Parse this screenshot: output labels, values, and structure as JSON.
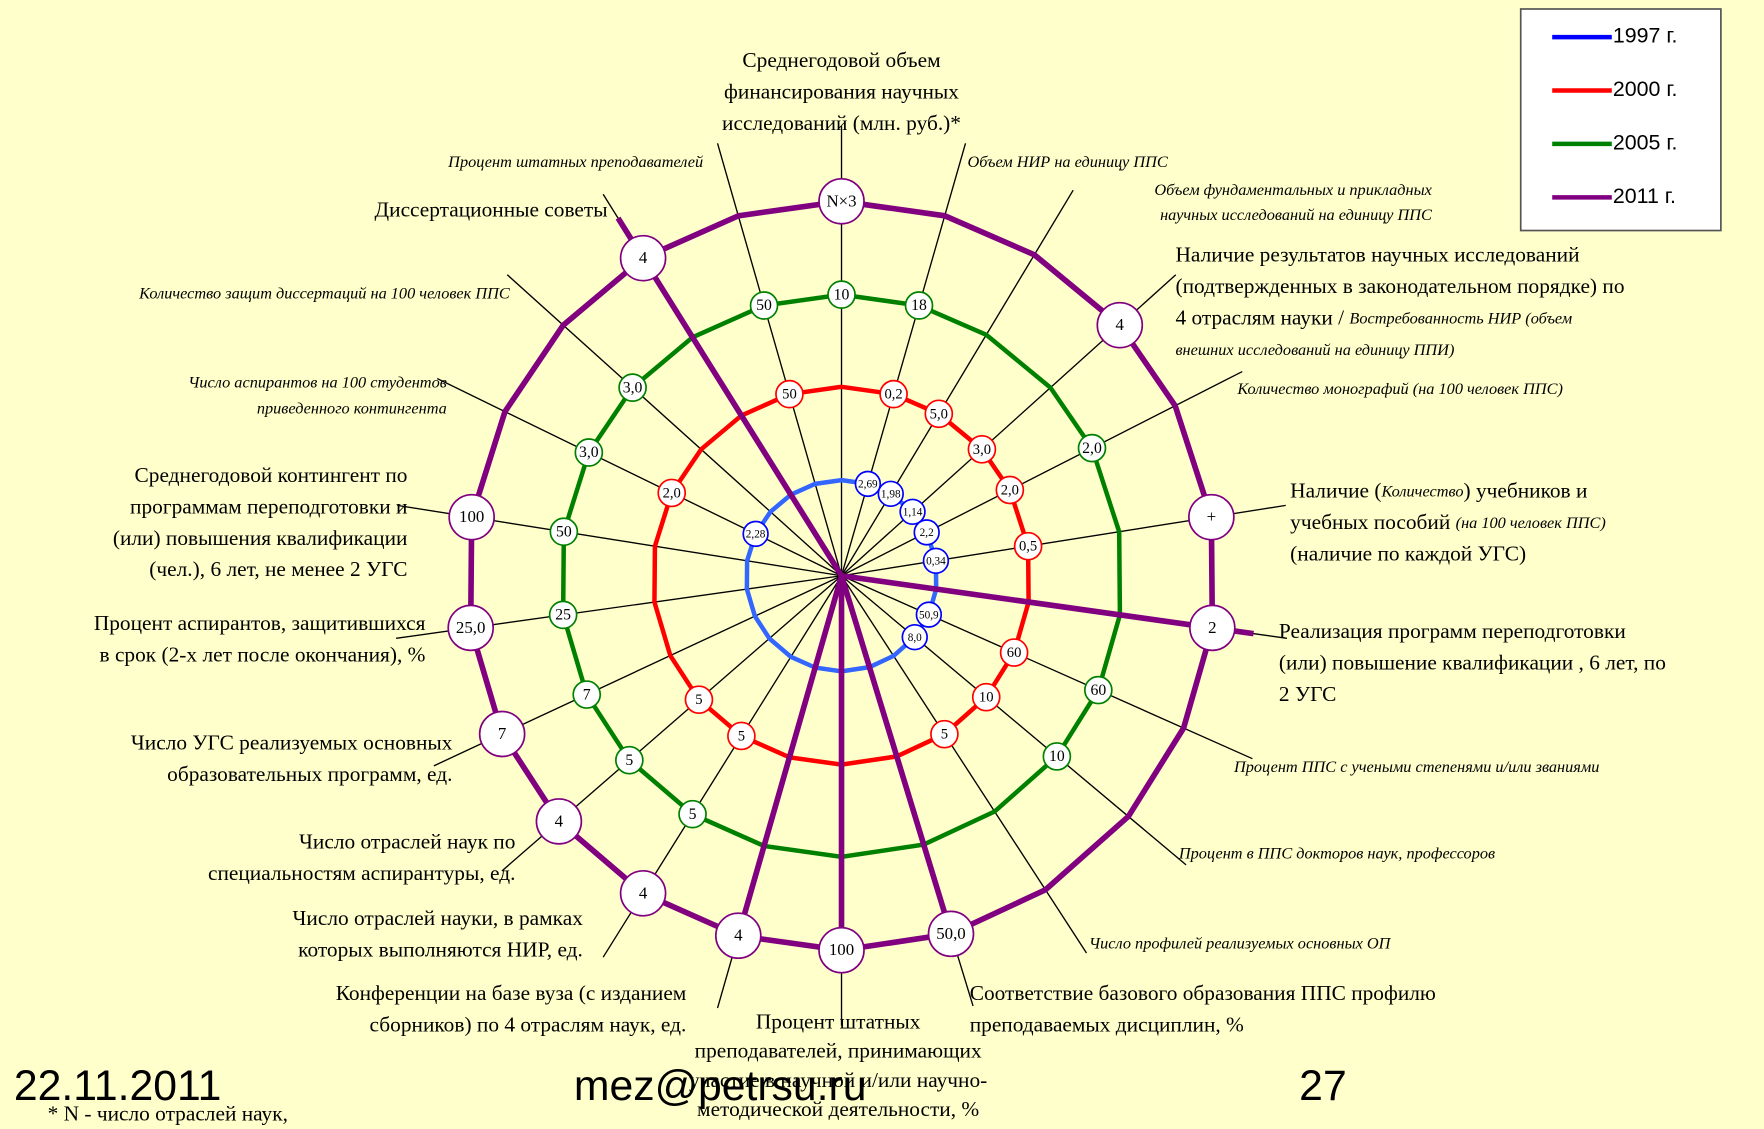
{
  "series": [
    {
      "name": "1997 г.",
      "color": "#0000ff",
      "markers": [
        null,
        "2,69",
        "1,98",
        "1,14",
        "2,2",
        "0,34",
        null,
        "50,9",
        "8,0",
        null,
        null,
        null,
        null,
        null,
        null,
        null,
        null,
        null,
        "2,28",
        null,
        null,
        null
      ]
    },
    {
      "name": "2000 г.",
      "color": "#ff0000",
      "markers": [
        null,
        "0,2",
        "5,0",
        "3,0",
        "2,0",
        "0,5",
        null,
        "60",
        "10",
        "5",
        null,
        null,
        null,
        "5",
        "5",
        null,
        null,
        null,
        "2,0",
        null,
        null,
        "50"
      ]
    },
    {
      "name": "2005 г.",
      "color": "#008000",
      "markers": [
        "10",
        "18",
        null,
        null,
        "2,0",
        null,
        null,
        "60",
        "10",
        null,
        null,
        null,
        null,
        "5",
        "5",
        "7",
        "25",
        "50",
        "3,0",
        "3,0",
        null,
        "50"
      ]
    },
    {
      "name": "2011 г.",
      "color": "#800080",
      "markers": [
        "N×3",
        null,
        null,
        "4",
        null,
        "+",
        "2",
        null,
        null,
        null,
        "50,0",
        "100",
        "4",
        "4",
        "4",
        "7",
        "25,0",
        "100",
        null,
        null,
        "4",
        null
      ]
    }
  ],
  "labels": [
    {
      "lines": [
        [
          {
            "text": "Среднегодовой объем"
          }
        ],
        [
          {
            "text": "финансирования научных"
          }
        ],
        [
          {
            "text": "исследований (млн. руб.)*"
          }
        ]
      ]
    },
    {
      "lines": [
        [
          {
            "text": "Процент штатных преподавателей",
            "italic": true
          }
        ]
      ]
    },
    {
      "lines": [
        [
          {
            "text": "Объем НИР на единицу ППС",
            "italic": true
          }
        ]
      ]
    },
    {
      "lines": [
        [
          {
            "text": "Объем фундаментальных и прикладных",
            "italic": true
          }
        ],
        [
          {
            "text": "научных исследований на единицу ППС",
            "italic": true
          }
        ]
      ]
    },
    {
      "lines": [
        [
          {
            "text": "Диссертационные советы"
          }
        ]
      ]
    },
    {
      "lines": [
        [
          {
            "text": "Наличие результатов научных исследований"
          }
        ],
        [
          {
            "text": "(подтвержденных в законодательном порядке) по"
          }
        ],
        [
          {
            "text": "4 отраслям науки / "
          },
          {
            "text": "Востребованность НИР (объем",
            "italic": true
          }
        ],
        [
          {
            "text": "внешних исследований на единицу ППИ)",
            "italic": true
          }
        ]
      ]
    },
    {
      "lines": [
        [
          {
            "text": "Количество защит диссертаций на 100 человек ППС",
            "italic": true
          }
        ]
      ]
    },
    {
      "lines": [
        [
          {
            "text": "Количество монографий (на 100 человек ППС)",
            "italic": true
          }
        ]
      ]
    },
    {
      "lines": [
        [
          {
            "text": "Число аспирантов на 100 студентов",
            "italic": true
          }
        ],
        [
          {
            "text": "приведенного контингента",
            "italic": true
          }
        ]
      ]
    },
    {
      "lines": [
        [
          {
            "text": "Среднегодовой контингент по"
          }
        ],
        [
          {
            "text": "программам переподготовки и"
          }
        ],
        [
          {
            "text": "(или) повышения квалификации"
          }
        ],
        [
          {
            "text": "(чел.), 6 лет, не менее 2 УГС"
          }
        ]
      ]
    },
    {
      "lines": [
        [
          {
            "text": "Наличие ("
          },
          {
            "text": "Количество",
            "italic": true
          },
          {
            "text": ") учебников и"
          }
        ],
        [
          {
            "text": "учебных пособий "
          },
          {
            "text": "(на 100 человек ППС)",
            "italic": true
          }
        ],
        [
          {
            "text": "(наличие по каждой УГС)"
          }
        ]
      ]
    },
    {
      "lines": [
        [
          {
            "text": "Процент аспирантов, защитившихся"
          }
        ],
        [
          {
            "text": "в срок (2-х лет после окончания), %"
          }
        ]
      ]
    },
    {
      "lines": [
        [
          {
            "text": "Реализация программ переподготовки"
          }
        ],
        [
          {
            "text": "(или) повышение квалификации , 6 лет, по"
          }
        ],
        [
          {
            "text": "2 УГС"
          }
        ]
      ]
    },
    {
      "lines": [
        [
          {
            "text": "Число УГС реализуемых основных"
          }
        ],
        [
          {
            "text": "образовательных программ, ед."
          }
        ]
      ]
    },
    {
      "lines": [
        [
          {
            "text": "Процент ППС с учеными степенями и/или званиями",
            "italic": true
          }
        ]
      ]
    },
    {
      "lines": [
        [
          {
            "text": "Число отраслей наук по"
          }
        ],
        [
          {
            "text": "специальностям аспирантуры, ед."
          }
        ]
      ]
    },
    {
      "lines": [
        [
          {
            "text": "Процент в ППС докторов наук, профессоров",
            "italic": true
          }
        ]
      ]
    },
    {
      "lines": [
        [
          {
            "text": "Число отраслей науки, в рамках"
          }
        ],
        [
          {
            "text": "которых выполняются НИР, ед."
          }
        ]
      ]
    },
    {
      "lines": [
        [
          {
            "text": "Число профилей реализуемых основных ОП",
            "italic": true
          }
        ]
      ]
    },
    {
      "lines": [
        [
          {
            "text": "Конференции на базе вуза (с изданием"
          }
        ],
        [
          {
            "text": "сборников) по 4 отраслям наук, ед."
          }
        ]
      ]
    },
    {
      "lines": [
        [
          {
            "text": "Соответствие базового образования ППС профилю"
          }
        ],
        [
          {
            "text": "преподаваемых дисциплин, %"
          }
        ]
      ]
    },
    {
      "lines": [
        [
          {
            "text": "Процент штатных"
          }
        ],
        [
          {
            "text": "преподавателей, принимающих"
          }
        ],
        [
          {
            "text": "участие в научной и/или научно-"
          }
        ],
        [
          {
            "text": "методической деятельности, %"
          }
        ]
      ]
    },
    {
      "lines": [
        [
          {
            "text": "* N - число отраслей наук,"
          }
        ]
      ]
    }
  ],
  "footer": {
    "date": "22.11.2011",
    "email": "mez@petrsu.ru",
    "page": "27"
  }
}
